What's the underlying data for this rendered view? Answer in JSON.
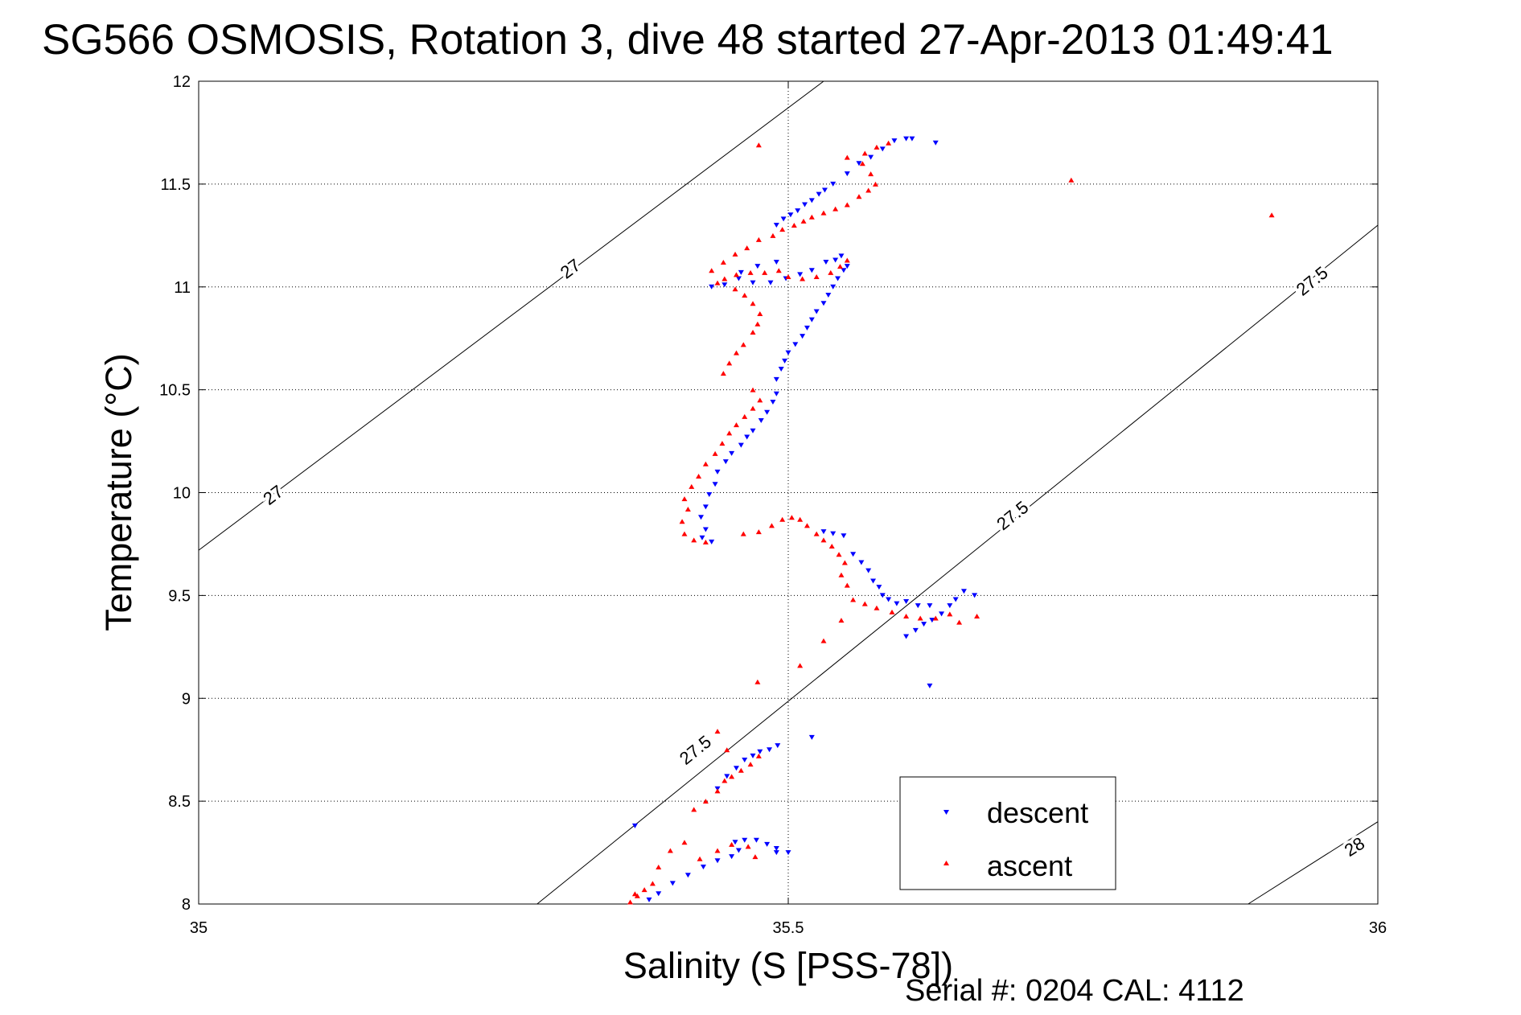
{
  "chart_data": {
    "type": "scatter",
    "title": "SG566 OSMOSIS, Rotation 3, dive 48 started 27-Apr-2013 01:49:41",
    "xlabel": "Salinity (S [PSS-78])",
    "ylabel": "Temperature (°C)",
    "xlim": [
      35,
      36
    ],
    "ylim": [
      8,
      12
    ],
    "xticks": [
      35,
      35.5,
      36
    ],
    "xtick_labels": [
      "35",
      "35.5",
      "36"
    ],
    "yticks": [
      8,
      8.5,
      9,
      9.5,
      10,
      10.5,
      11,
      11.5,
      12
    ],
    "ytick_labels": [
      "8",
      "8.5",
      "9",
      "9.5",
      "10",
      "10.5",
      "11",
      "11.5",
      "12"
    ],
    "grid": true,
    "legend_position": "bottom-right",
    "footer": "Serial #: 0204  CAL: 4112",
    "density_contours": [
      {
        "label": "27",
        "points": [
          [
            35.0,
            9.72
          ],
          [
            35.53,
            12.0
          ]
        ],
        "labels_at": [
          [
            35.063,
            9.99
          ],
          [
            35.315,
            11.09
          ]
        ]
      },
      {
        "label": "27.5",
        "points": [
          [
            35.287,
            8.0
          ],
          [
            36.0,
            11.3
          ]
        ],
        "labels_at": [
          [
            35.421,
            8.75
          ],
          [
            35.69,
            9.89
          ],
          [
            35.944,
            11.03
          ]
        ]
      },
      {
        "label": "28",
        "points": [
          [
            35.89,
            8.0
          ],
          [
            36.0,
            8.4
          ]
        ],
        "labels_at": [
          [
            35.98,
            8.28
          ]
        ]
      }
    ],
    "series": [
      {
        "name": "descent",
        "color": "#0000ff",
        "marker": "triangle-down",
        "points": [
          [
            35.382,
            8.02
          ],
          [
            35.39,
            8.05
          ],
          [
            35.402,
            8.1
          ],
          [
            35.415,
            8.14
          ],
          [
            35.428,
            8.18
          ],
          [
            35.44,
            8.21
          ],
          [
            35.452,
            8.23
          ],
          [
            35.458,
            8.26
          ],
          [
            35.37,
            8.38
          ],
          [
            35.455,
            8.3
          ],
          [
            35.463,
            8.31
          ],
          [
            35.473,
            8.31
          ],
          [
            35.482,
            8.29
          ],
          [
            35.49,
            8.27
          ],
          [
            35.5,
            8.25
          ],
          [
            35.49,
            8.25
          ],
          [
            35.44,
            8.56
          ],
          [
            35.448,
            8.62
          ],
          [
            35.456,
            8.66
          ],
          [
            35.463,
            8.7
          ],
          [
            35.47,
            8.72
          ],
          [
            35.476,
            8.74
          ],
          [
            35.484,
            8.75
          ],
          [
            35.491,
            8.77
          ],
          [
            35.52,
            8.81
          ],
          [
            35.62,
            9.06
          ],
          [
            35.6,
            9.3
          ],
          [
            35.608,
            9.33
          ],
          [
            35.615,
            9.36
          ],
          [
            35.622,
            9.38
          ],
          [
            35.63,
            9.41
          ],
          [
            35.637,
            9.45
          ],
          [
            35.642,
            9.48
          ],
          [
            35.649,
            9.52
          ],
          [
            35.658,
            9.5
          ],
          [
            35.555,
            9.7
          ],
          [
            35.562,
            9.66
          ],
          [
            35.568,
            9.62
          ],
          [
            35.572,
            9.57
          ],
          [
            35.577,
            9.54
          ],
          [
            35.58,
            9.5
          ],
          [
            35.585,
            9.48
          ],
          [
            35.592,
            9.46
          ],
          [
            35.6,
            9.47
          ],
          [
            35.61,
            9.45
          ],
          [
            35.62,
            9.45
          ],
          [
            35.547,
            9.79
          ],
          [
            35.538,
            9.8
          ],
          [
            35.53,
            9.81
          ],
          [
            35.435,
            9.76
          ],
          [
            35.427,
            9.78
          ],
          [
            35.43,
            9.82
          ],
          [
            35.426,
            9.88
          ],
          [
            35.43,
            9.93
          ],
          [
            35.433,
            9.99
          ],
          [
            35.438,
            10.04
          ],
          [
            35.44,
            10.1
          ],
          [
            35.447,
            10.15
          ],
          [
            35.452,
            10.19
          ],
          [
            35.46,
            10.23
          ],
          [
            35.465,
            10.27
          ],
          [
            35.47,
            10.3
          ],
          [
            35.477,
            10.35
          ],
          [
            35.482,
            10.39
          ],
          [
            35.487,
            10.44
          ],
          [
            35.49,
            10.48
          ],
          [
            35.49,
            10.55
          ],
          [
            35.494,
            10.6
          ],
          [
            35.497,
            10.64
          ],
          [
            35.5,
            10.68
          ],
          [
            35.506,
            10.72
          ],
          [
            35.512,
            10.76
          ],
          [
            35.516,
            10.8
          ],
          [
            35.52,
            10.84
          ],
          [
            35.524,
            10.88
          ],
          [
            35.53,
            10.92
          ],
          [
            35.534,
            10.96
          ],
          [
            35.538,
            11.0
          ],
          [
            35.542,
            11.04
          ],
          [
            35.547,
            11.08
          ],
          [
            35.55,
            11.1
          ],
          [
            35.545,
            11.15
          ],
          [
            35.54,
            11.13
          ],
          [
            35.532,
            11.12
          ],
          [
            35.52,
            11.08
          ],
          [
            35.51,
            11.06
          ],
          [
            35.498,
            11.04
          ],
          [
            35.485,
            11.02
          ],
          [
            35.47,
            11.02
          ],
          [
            35.458,
            11.04
          ],
          [
            35.446,
            11.01
          ],
          [
            35.435,
            11.0
          ],
          [
            35.46,
            11.07
          ],
          [
            35.474,
            11.1
          ],
          [
            35.49,
            11.12
          ],
          [
            35.49,
            11.3
          ],
          [
            35.496,
            11.33
          ],
          [
            35.502,
            11.35
          ],
          [
            35.508,
            11.37
          ],
          [
            35.514,
            11.4
          ],
          [
            35.52,
            11.42
          ],
          [
            35.526,
            11.45
          ],
          [
            35.531,
            11.47
          ],
          [
            35.538,
            11.5
          ],
          [
            35.55,
            11.55
          ],
          [
            35.56,
            11.6
          ],
          [
            35.57,
            11.63
          ],
          [
            35.58,
            11.67
          ],
          [
            35.59,
            11.71
          ],
          [
            35.6,
            11.72
          ],
          [
            35.605,
            11.72
          ],
          [
            35.625,
            11.7
          ]
        ]
      },
      {
        "name": "ascent",
        "color": "#ff0000",
        "marker": "triangle-up",
        "points": [
          [
            35.366,
            8.01
          ],
          [
            35.372,
            8.04
          ],
          [
            35.378,
            8.07
          ],
          [
            35.37,
            8.05
          ],
          [
            35.385,
            8.1
          ],
          [
            35.39,
            8.18
          ],
          [
            35.4,
            8.26
          ],
          [
            35.412,
            8.3
          ],
          [
            35.425,
            8.22
          ],
          [
            35.44,
            8.26
          ],
          [
            35.452,
            8.29
          ],
          [
            35.466,
            8.28
          ],
          [
            35.472,
            8.23
          ],
          [
            35.42,
            8.46
          ],
          [
            35.43,
            8.5
          ],
          [
            35.44,
            8.55
          ],
          [
            35.446,
            8.6
          ],
          [
            35.452,
            8.62
          ],
          [
            35.46,
            8.65
          ],
          [
            35.468,
            8.68
          ],
          [
            35.475,
            8.72
          ],
          [
            35.448,
            8.75
          ],
          [
            35.44,
            8.84
          ],
          [
            35.474,
            9.08
          ],
          [
            35.51,
            9.16
          ],
          [
            35.53,
            9.28
          ],
          [
            35.545,
            9.38
          ],
          [
            35.555,
            9.48
          ],
          [
            35.565,
            9.46
          ],
          [
            35.575,
            9.44
          ],
          [
            35.588,
            9.42
          ],
          [
            35.6,
            9.4
          ],
          [
            35.612,
            9.39
          ],
          [
            35.625,
            9.39
          ],
          [
            35.637,
            9.41
          ],
          [
            35.645,
            9.37
          ],
          [
            35.66,
            9.4
          ],
          [
            35.55,
            9.55
          ],
          [
            35.545,
            9.6
          ],
          [
            35.548,
            9.66
          ],
          [
            35.543,
            9.7
          ],
          [
            35.537,
            9.74
          ],
          [
            35.53,
            9.77
          ],
          [
            35.524,
            9.8
          ],
          [
            35.516,
            9.84
          ],
          [
            35.51,
            9.87
          ],
          [
            35.503,
            9.88
          ],
          [
            35.495,
            9.87
          ],
          [
            35.486,
            9.84
          ],
          [
            35.475,
            9.81
          ],
          [
            35.462,
            9.8
          ],
          [
            35.43,
            9.76
          ],
          [
            35.42,
            9.77
          ],
          [
            35.412,
            9.8
          ],
          [
            35.41,
            9.86
          ],
          [
            35.415,
            9.92
          ],
          [
            35.412,
            9.97
          ],
          [
            35.418,
            10.03
          ],
          [
            35.424,
            10.08
          ],
          [
            35.43,
            10.14
          ],
          [
            35.438,
            10.19
          ],
          [
            35.444,
            10.24
          ],
          [
            35.45,
            10.29
          ],
          [
            35.456,
            10.33
          ],
          [
            35.463,
            10.37
          ],
          [
            35.47,
            10.41
          ],
          [
            35.476,
            10.45
          ],
          [
            35.47,
            10.5
          ],
          [
            35.445,
            10.58
          ],
          [
            35.45,
            10.63
          ],
          [
            35.456,
            10.68
          ],
          [
            35.462,
            10.72
          ],
          [
            35.47,
            10.78
          ],
          [
            35.474,
            10.82
          ],
          [
            35.476,
            10.87
          ],
          [
            35.47,
            10.92
          ],
          [
            35.463,
            10.96
          ],
          [
            35.455,
            10.99
          ],
          [
            35.44,
            11.02
          ],
          [
            35.446,
            11.04
          ],
          [
            35.456,
            11.06
          ],
          [
            35.468,
            11.07
          ],
          [
            35.48,
            11.07
          ],
          [
            35.492,
            11.08
          ],
          [
            35.5,
            11.05
          ],
          [
            35.512,
            11.04
          ],
          [
            35.524,
            11.05
          ],
          [
            35.536,
            11.07
          ],
          [
            35.544,
            11.1
          ],
          [
            35.55,
            11.13
          ],
          [
            35.435,
            11.08
          ],
          [
            35.445,
            11.12
          ],
          [
            35.455,
            11.16
          ],
          [
            35.465,
            11.19
          ],
          [
            35.475,
            11.23
          ],
          [
            35.487,
            11.25
          ],
          [
            35.495,
            11.28
          ],
          [
            35.505,
            11.3
          ],
          [
            35.513,
            11.32
          ],
          [
            35.52,
            11.34
          ],
          [
            35.53,
            11.36
          ],
          [
            35.54,
            11.38
          ],
          [
            35.55,
            11.4
          ],
          [
            35.56,
            11.44
          ],
          [
            35.568,
            11.47
          ],
          [
            35.574,
            11.5
          ],
          [
            35.57,
            11.55
          ],
          [
            35.563,
            11.6
          ],
          [
            35.565,
            11.65
          ],
          [
            35.575,
            11.68
          ],
          [
            35.585,
            11.7
          ],
          [
            35.55,
            11.63
          ],
          [
            35.475,
            11.69
          ],
          [
            35.74,
            11.52
          ],
          [
            35.91,
            11.35
          ]
        ]
      }
    ]
  }
}
